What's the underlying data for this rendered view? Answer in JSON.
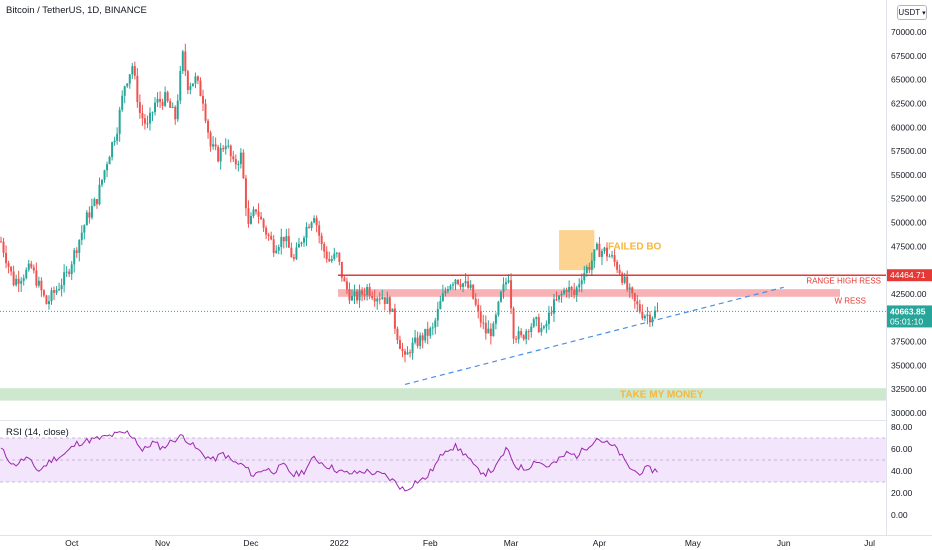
{
  "header": {
    "title": "Bitcoin / TetherUS, 1D, BINANCE",
    "currency": "USDT",
    "rsi_title": "RSI (14, close)"
  },
  "colors": {
    "up": "#26a69a",
    "down": "#ef5350",
    "range_line": "#e53935",
    "zone_red": "#f7a3a8",
    "zone_green": "#c8e6c9",
    "failed_box": "#fcc46e",
    "trendline": "#4a90e2",
    "rsi_line": "#9c27b0",
    "rsi_band": "#f3e5fc"
  },
  "chart_data": [
    {
      "type": "candlestick",
      "title": "Bitcoin / TetherUS, 1D, BINANCE",
      "y_ticks": [
        "70000.00",
        "67500.00",
        "65000.00",
        "62500.00",
        "60000.00",
        "57500.00",
        "55000.00",
        "52500.00",
        "50000.00",
        "47500.00",
        "42500.00",
        "37500.00",
        "35000.00",
        "32500.00",
        "30000.00"
      ],
      "x_ticks": [
        "Oct",
        "Nov",
        "Dec",
        "2022",
        "Feb",
        "Mar",
        "Apr",
        "May",
        "Jun",
        "Jul"
      ],
      "price_anchors": [
        [
          0,
          48000
        ],
        [
          5,
          43800
        ],
        [
          12,
          45200
        ],
        [
          18,
          41500
        ],
        [
          22,
          43000
        ],
        [
          26,
          44500
        ],
        [
          30,
          47500
        ],
        [
          34,
          50500
        ],
        [
          38,
          52500
        ],
        [
          42,
          56500
        ],
        [
          46,
          60000
        ],
        [
          49,
          64500
        ],
        [
          52,
          66500
        ],
        [
          55,
          61500
        ],
        [
          58,
          60000
        ],
        [
          61,
          62500
        ],
        [
          65,
          63000
        ],
        [
          69,
          61000
        ],
        [
          72,
          67500
        ],
        [
          74,
          64500
        ],
        [
          77,
          65000
        ],
        [
          80,
          63000
        ],
        [
          83,
          58000
        ],
        [
          86,
          57000
        ],
        [
          89,
          58500
        ],
        [
          92,
          56000
        ],
        [
          95,
          57000
        ],
        [
          98,
          49500
        ],
        [
          101,
          51500
        ],
        [
          104,
          49500
        ],
        [
          108,
          47500
        ],
        [
          112,
          48500
        ],
        [
          116,
          46000
        ],
        [
          120,
          49000
        ],
        [
          124,
          51000
        ],
        [
          127,
          47500
        ],
        [
          130,
          46000
        ],
        [
          133,
          46500
        ],
        [
          136,
          43500
        ],
        [
          139,
          42000
        ],
        [
          142,
          42300
        ],
        [
          145,
          43100
        ],
        [
          148,
          42400
        ],
        [
          151,
          42300
        ],
        [
          154,
          41300
        ],
        [
          157,
          38200
        ],
        [
          160,
          35500
        ],
        [
          162,
          36800
        ],
        [
          165,
          37500
        ],
        [
          168,
          38200
        ],
        [
          171,
          38700
        ],
        [
          174,
          41500
        ],
        [
          177,
          43500
        ],
        [
          180,
          44200
        ],
        [
          183,
          43600
        ],
        [
          186,
          42900
        ],
        [
          189,
          40300
        ],
        [
          192,
          38500
        ],
        [
          195,
          38700
        ],
        [
          198,
          42300
        ],
        [
          201,
          44500
        ],
        [
          203,
          38500
        ],
        [
          206,
          37800
        ],
        [
          209,
          39200
        ],
        [
          212,
          39400
        ],
        [
          215,
          38500
        ],
        [
          218,
          41000
        ],
        [
          221,
          42000
        ],
        [
          224,
          43200
        ],
        [
          227,
          42400
        ],
        [
          230,
          44500
        ],
        [
          233,
          45500
        ],
        [
          236,
          47100
        ],
        [
          239,
          47000
        ],
        [
          242,
          46200
        ],
        [
          245,
          45000
        ],
        [
          248,
          43000
        ],
        [
          251,
          41500
        ],
        [
          254,
          40500
        ],
        [
          257,
          40200
        ],
        [
          260,
          40700
        ]
      ],
      "levels": {
        "range_high": 44464.71,
        "last_price": 40663.85,
        "range_zone": [
          42200,
          43000
        ],
        "take_zone": [
          31300,
          32600
        ],
        "failed_box": [
          45000,
          49200
        ]
      },
      "price_label": "44464.71",
      "last_price_label": "40663.85",
      "countdown": "05:01:10",
      "annotations": {
        "failed_bo": "FAILED BO",
        "range_high": "RANGE HIGH RESS",
        "w_ress": "W RESS",
        "take_money": "TAKE MY MONEY"
      }
    },
    {
      "type": "line",
      "title": "RSI (14, close)",
      "y_ticks": [
        "80.00",
        "60.00",
        "40.00",
        "20.00",
        "0.00"
      ],
      "bands": [
        30,
        70
      ],
      "rsi_anchors": [
        [
          0,
          60
        ],
        [
          5,
          45
        ],
        [
          10,
          52
        ],
        [
          15,
          40
        ],
        [
          20,
          50
        ],
        [
          25,
          55
        ],
        [
          30,
          65
        ],
        [
          35,
          68
        ],
        [
          40,
          70
        ],
        [
          45,
          73
        ],
        [
          50,
          75
        ],
        [
          53,
          70
        ],
        [
          56,
          58
        ],
        [
          60,
          66
        ],
        [
          64,
          61
        ],
        [
          68,
          68
        ],
        [
          72,
          72
        ],
        [
          76,
          63
        ],
        [
          80,
          55
        ],
        [
          84,
          50
        ],
        [
          88,
          56
        ],
        [
          92,
          48
        ],
        [
          96,
          45
        ],
        [
          100,
          36
        ],
        [
          104,
          42
        ],
        [
          108,
          40
        ],
        [
          112,
          45
        ],
        [
          116,
          36
        ],
        [
          120,
          40
        ],
        [
          124,
          52
        ],
        [
          128,
          46
        ],
        [
          132,
          42
        ],
        [
          136,
          38
        ],
        [
          140,
          38
        ],
        [
          144,
          40
        ],
        [
          148,
          38
        ],
        [
          152,
          36
        ],
        [
          156,
          30
        ],
        [
          160,
          22
        ],
        [
          164,
          30
        ],
        [
          168,
          33
        ],
        [
          172,
          45
        ],
        [
          176,
          60
        ],
        [
          180,
          62
        ],
        [
          184,
          55
        ],
        [
          188,
          42
        ],
        [
          192,
          38
        ],
        [
          196,
          43
        ],
        [
          200,
          60
        ],
        [
          204,
          44
        ],
        [
          208,
          42
        ],
        [
          212,
          50
        ],
        [
          216,
          44
        ],
        [
          220,
          48
        ],
        [
          224,
          56
        ],
        [
          228,
          54
        ],
        [
          232,
          62
        ],
        [
          236,
          70
        ],
        [
          240,
          65
        ],
        [
          244,
          60
        ],
        [
          248,
          45
        ],
        [
          252,
          38
        ],
        [
          256,
          42
        ],
        [
          260,
          40
        ]
      ]
    }
  ]
}
